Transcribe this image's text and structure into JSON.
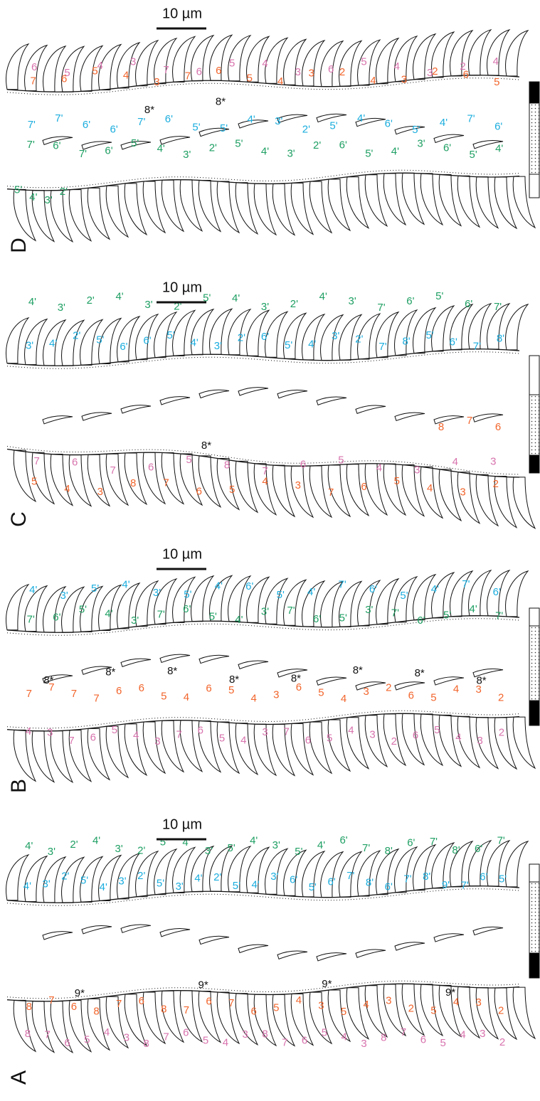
{
  "palette": {
    "orange": "#f2652c",
    "pink": "#d873ad",
    "cyan": "#1badde",
    "green": "#1e9f63",
    "black": "#111111"
  },
  "panels": [
    {
      "letter": "D",
      "scale_label": "10 µm",
      "rows": [
        {
          "color": "pink",
          "labels": [
            "6",
            "5",
            "4",
            "3",
            "7",
            "6",
            "5",
            "4",
            "3",
            "6",
            "5",
            "4",
            "3",
            "2",
            "4"
          ]
        },
        {
          "color": "orange",
          "labels": [
            "7",
            "6",
            "5",
            "4",
            "3",
            "7",
            "6",
            "5",
            "4",
            "3",
            "2",
            "4",
            "3",
            "2",
            "6",
            "5"
          ]
        },
        {
          "color": "black",
          "labels": [
            "8*",
            "8*"
          ]
        },
        {
          "color": "cyan",
          "labels": [
            "7'",
            "7'",
            "6'",
            "6'",
            "7'",
            "6'",
            "5'",
            "5'",
            "4'",
            "3'",
            "2'",
            "5'",
            "4'",
            "6'",
            "5'",
            "4'",
            "7'",
            "6'"
          ]
        },
        {
          "color": "green",
          "labels": [
            "7'",
            "6'",
            "7'",
            "6'",
            "5'",
            "4'",
            "3'",
            "2'",
            "5'",
            "4'",
            "3'",
            "2'",
            "6'",
            "5'",
            "4'",
            "3'",
            "6'",
            "5'",
            "4'"
          ]
        },
        {
          "color": "green",
          "labels": [
            "5'",
            "4'",
            "3'",
            "2'"
          ]
        }
      ]
    },
    {
      "letter": "C",
      "scale_label": "10 µm",
      "rows": [
        {
          "color": "green",
          "labels": [
            "4'",
            "3'",
            "2'",
            "4'",
            "3'",
            "2'",
            "5'",
            "4'",
            "3'",
            "2'",
            "4'",
            "3'",
            "7'",
            "6'",
            "5'",
            "6'",
            "7'"
          ]
        },
        {
          "color": "cyan",
          "labels": [
            "3'",
            "4'",
            "2'",
            "5'",
            "6'",
            "6'",
            "5'",
            "4'",
            "3'",
            "2'",
            "6'",
            "5'",
            "4'",
            "3'",
            "2'",
            "7'",
            "8'",
            "5'",
            "6'",
            "7'",
            "8'"
          ]
        },
        {
          "color": "black",
          "labels": [
            "8*"
          ]
        },
        {
          "color": "orange",
          "labels": [
            "8",
            "7",
            "6"
          ]
        },
        {
          "color": "pink",
          "labels": [
            "7",
            "6",
            "7",
            "6",
            "5",
            "8",
            "7",
            "6",
            "5",
            "4",
            "3",
            "4",
            "3"
          ]
        },
        {
          "color": "orange",
          "labels": [
            "5",
            "4",
            "3",
            "8",
            "7",
            "6",
            "5",
            "4",
            "3",
            "7",
            "6",
            "5",
            "4",
            "3",
            "2"
          ]
        }
      ]
    },
    {
      "letter": "B",
      "scale_label": "10 µm",
      "rows": [
        {
          "color": "cyan",
          "labels": [
            "4'",
            "3'",
            "5'",
            "4'",
            "3'",
            "5'",
            "4'",
            "6'",
            "5'",
            "4'",
            "7'",
            "6'",
            "5'",
            "4'",
            "7'",
            "6'"
          ]
        },
        {
          "color": "green",
          "labels": [
            "7'",
            "6'",
            "5'",
            "4'",
            "3'",
            "7'",
            "6'",
            "5'",
            "4'",
            "3'",
            "7'",
            "6'",
            "5'",
            "3'",
            "7'",
            "6'",
            "5'",
            "4'",
            "7'"
          ]
        },
        {
          "color": "black",
          "labels": [
            "8*",
            "8*",
            "8*",
            "8*",
            "8*",
            "8*",
            "8*",
            "8*"
          ]
        },
        {
          "color": "orange",
          "labels": [
            "7",
            "7",
            "7",
            "7",
            "6",
            "6",
            "5",
            "4",
            "6",
            "5",
            "4",
            "3",
            "6",
            "5",
            "4",
            "3",
            "2",
            "6",
            "5",
            "4",
            "3",
            "2"
          ]
        },
        {
          "color": "pink",
          "labels": [
            "4",
            "3",
            "7",
            "6",
            "5",
            "4",
            "3",
            "7",
            "6",
            "5",
            "4",
            "3",
            "7",
            "6",
            "5",
            "4",
            "3",
            "2",
            "6",
            "5",
            "4",
            "3",
            "2"
          ]
        }
      ]
    },
    {
      "letter": "A",
      "scale_label": "10 µm",
      "rows": [
        {
          "color": "green",
          "labels": [
            "4'",
            "3'",
            "2'",
            "4'",
            "3'",
            "2'",
            "5'",
            "4'",
            "3'",
            "5'",
            "4'",
            "3'",
            "5'",
            "4'",
            "6'",
            "7'",
            "8'",
            "6'",
            "7'",
            "8'",
            "6'",
            "7'"
          ]
        },
        {
          "color": "cyan",
          "labels": [
            "4'",
            "3'",
            "2'",
            "5'",
            "4'",
            "3'",
            "2'",
            "5'",
            "3'",
            "4'",
            "2'",
            "5'",
            "4'",
            "3'",
            "6'",
            "5'",
            "6'",
            "7'",
            "8'",
            "6'",
            "7'",
            "8'",
            "9'",
            "7'",
            "6'",
            "5'"
          ]
        },
        {
          "color": "black",
          "labels": [
            "9*",
            "9*",
            "9*",
            "9*"
          ]
        },
        {
          "color": "orange",
          "labels": [
            "8",
            "7",
            "6",
            "8",
            "7",
            "6",
            "8",
            "7",
            "6",
            "7",
            "6",
            "5",
            "4",
            "3",
            "5",
            "4",
            "3",
            "2",
            "5",
            "4",
            "3",
            "2"
          ]
        },
        {
          "color": "pink",
          "labels": [
            "8",
            "7",
            "6",
            "5",
            "4",
            "3",
            "8",
            "7",
            "6",
            "5",
            "4",
            "3",
            "8",
            "7",
            "6",
            "5",
            "4",
            "3",
            "8",
            "7",
            "6",
            "5",
            "4",
            "3",
            "2"
          ]
        }
      ]
    }
  ]
}
